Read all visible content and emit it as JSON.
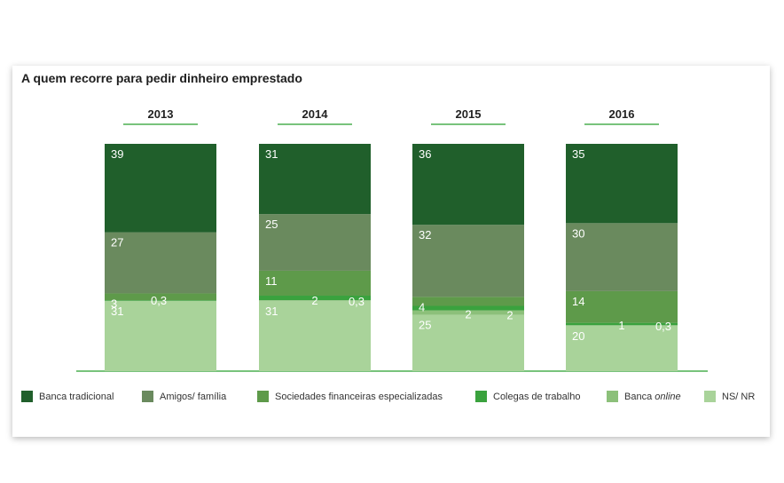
{
  "chart_data": {
    "type": "bar",
    "stacked": true,
    "title": "A quem recorre para pedir dinheiro emprestado",
    "categories": [
      "2013",
      "2014",
      "2015",
      "2016"
    ],
    "series": [
      {
        "name": "Banca tradicional",
        "name_plain": "Banca tradicional",
        "color": "#205f2b",
        "values": [
          39,
          31,
          36,
          35
        ],
        "labels": [
          "39",
          "31",
          "36",
          "35"
        ]
      },
      {
        "name": "Amigos/ família",
        "name_plain": "Amigos/ família",
        "color": "#6a8a5e",
        "values": [
          27,
          25,
          32,
          30
        ],
        "labels": [
          "27",
          "25",
          "32",
          "30"
        ]
      },
      {
        "name": "Sociedades financeiras especializadas",
        "name_plain": "Sociedades financeiras especializadas",
        "color": "#5e9a4a",
        "values": [
          3,
          11,
          4,
          14
        ],
        "labels": [
          "3",
          "11",
          "4",
          "14"
        ]
      },
      {
        "name": "Colegas de trabalho",
        "name_plain": "Colegas de trabalho",
        "color": "#3aa23e",
        "values": [
          0.3,
          2,
          2,
          1
        ],
        "labels": [
          "0,3",
          "2",
          "2",
          "1"
        ]
      },
      {
        "name": "Banca online",
        "name_plain": "Banca",
        "name_italic": "online",
        "color": "#8cc07a",
        "values": [
          0,
          0.3,
          2,
          0.3
        ],
        "labels": [
          "",
          "0,3",
          "2",
          "0,3"
        ]
      },
      {
        "name": "NS/ NR",
        "name_plain": "NS/ NR",
        "color": "#a9d39a",
        "values": [
          31,
          31,
          25,
          20
        ],
        "labels": [
          "31",
          "31",
          "25",
          "20"
        ]
      }
    ],
    "axis_color": "#4caf50",
    "legend_position": "bottom"
  }
}
